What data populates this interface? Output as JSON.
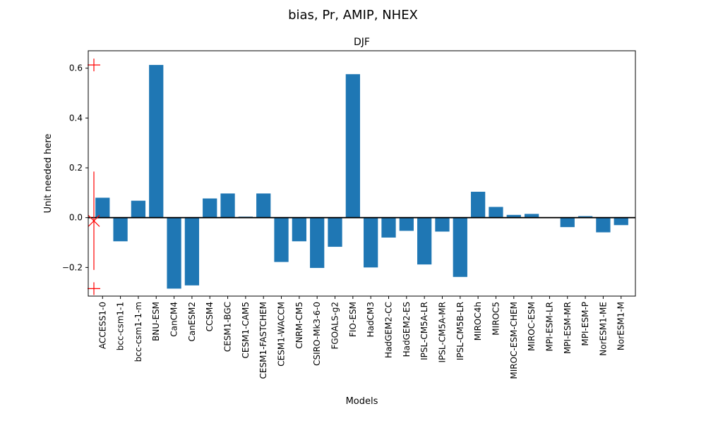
{
  "figure": {
    "suptitle": "bias, Pr, AMIP, NHEX"
  },
  "chart_data": {
    "type": "bar",
    "title": "DJF",
    "xlabel": "Models",
    "ylabel": "Unit needed here",
    "ylim": [
      -0.315,
      0.67
    ],
    "yticks": [
      -0.2,
      0.0,
      0.2,
      0.4,
      0.6
    ],
    "ytick_labels": [
      "−0.2",
      "0.0",
      "0.2",
      "0.4",
      "0.6"
    ],
    "grid": false,
    "legend": "none",
    "bar_color": "#1f77b4",
    "categories": [
      "ACCESS1-0",
      "bcc-csm1-1",
      "bcc-csm1-1-m",
      "BNU-ESM",
      "CanCM4",
      "CanESM2",
      "CCSM4",
      "CESM1-BGC",
      "CESM1-CAM5",
      "CESM1-FASTCHEM",
      "CESM1-WACCM",
      "CNRM-CM5",
      "CSIRO-Mk3-6-0",
      "FGOALS-g2",
      "FIO-ESM",
      "HadCM3",
      "HadGEM2-CC",
      "HadGEM2-ES",
      "IPSL-CM5A-LR",
      "IPSL-CM5A-MR",
      "IPSL-CM5B-LR",
      "MIROC4h",
      "MIROC5",
      "MIROC-ESM-CHEM",
      "MIROC-ESM",
      "MPI-ESM-LR",
      "MPI-ESM-MR",
      "MPI-ESM-P",
      "NorESM1-ME",
      "NorESM1-M"
    ],
    "values": [
      0.08,
      -0.095,
      0.068,
      0.613,
      -0.285,
      -0.272,
      0.077,
      0.097,
      0.004,
      0.097,
      -0.178,
      -0.095,
      -0.202,
      -0.117,
      0.576,
      -0.2,
      -0.08,
      -0.053,
      -0.188,
      -0.056,
      -0.238,
      0.104,
      0.043,
      0.011,
      0.015,
      -0.001,
      -0.038,
      0.006,
      -0.059,
      -0.03
    ],
    "zero_line": 0.0,
    "summary_marker": {
      "color": "#ff0000",
      "max": 0.613,
      "min": -0.285,
      "mean": -0.013,
      "whisker_top": 0.185,
      "whisker_bottom": -0.21
    }
  }
}
